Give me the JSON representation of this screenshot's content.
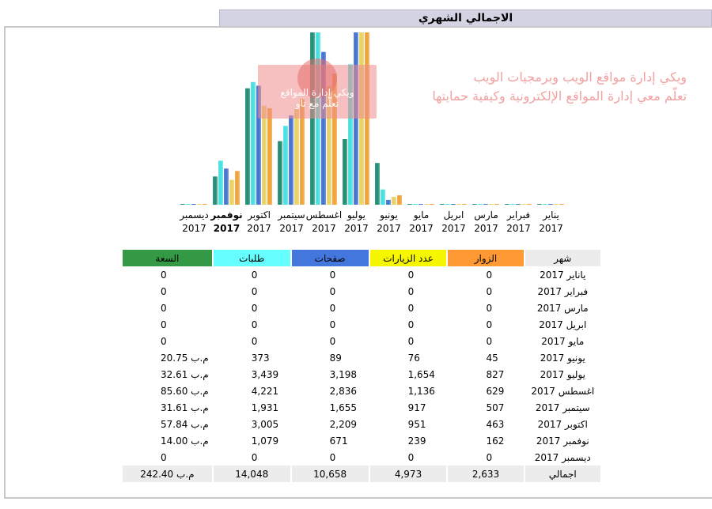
{
  "title": "الاجمالي الشهري",
  "watermark": {
    "line1": "ويكي إدارة مواقع الويب وبرمجيات الويب",
    "line2": "تعلّم معي إدارة المواقع الإلكترونية وكيفية حمايتها",
    "logo_line1": "ويكي إدارة المواقع",
    "logo_line2": "تعلّم مع تاو"
  },
  "colors": {
    "visitors": "#f0a030",
    "visits": "#e8d060",
    "pages": "#3f6fd0",
    "hits": "#40e0e0",
    "bandwidth": "#1a8a70",
    "header_visitors": "#ff9933",
    "header_visits": "#f6f600",
    "header_pages": "#4477dd",
    "header_hits": "#66ffff",
    "header_bandwidth": "#339944"
  },
  "chart_data": {
    "type": "bar",
    "categories": [
      "يناير 2017",
      "فبراير 2017",
      "مارس 2017",
      "ابريل 2017",
      "مايو 2017",
      "يونيو 2017",
      "يوليو 2017",
      "اغسطس 2017",
      "سيتمبر 2017",
      "اكتوبر 2017",
      "نوفمبر 2017",
      "ديسمبر 2017"
    ],
    "category_month": [
      "يناير",
      "فبراير",
      "مارس",
      "ابريل",
      "مايو",
      "يونيو",
      "يوليو",
      "اغسطس",
      "سيتمبر",
      "اكتوبر",
      "نوفمبر",
      "ديسمبر"
    ],
    "category_year": [
      "2017",
      "2017",
      "2017",
      "2017",
      "2017",
      "2017",
      "2017",
      "2017",
      "2017",
      "2017",
      "2017",
      "2017"
    ],
    "current_month_index": 10,
    "series": [
      {
        "key": "bandwidth",
        "values": [
          0,
          0,
          0,
          0,
          0,
          20.75,
          32.61,
          85.6,
          31.61,
          57.84,
          14.0,
          0
        ]
      },
      {
        "key": "hits",
        "values": [
          0,
          0,
          0,
          0,
          0,
          373,
          3439,
          4221,
          1931,
          3005,
          1079,
          0
        ]
      },
      {
        "key": "pages",
        "values": [
          0,
          0,
          0,
          0,
          0,
          89,
          3198,
          2836,
          1655,
          2209,
          671,
          0
        ]
      },
      {
        "key": "visits",
        "values": [
          0,
          0,
          0,
          0,
          0,
          76,
          1654,
          1136,
          917,
          951,
          239,
          0
        ]
      },
      {
        "key": "visitors",
        "values": [
          0,
          0,
          0,
          0,
          0,
          45,
          827,
          629,
          507,
          463,
          162,
          0
        ]
      }
    ]
  },
  "table": {
    "headers": {
      "month": "شهر",
      "visitors": "الزوار",
      "visits": "عدد الزيارات",
      "pages": "صفحات",
      "hits": "طلبات",
      "bandwidth": "السعة"
    },
    "rows": [
      {
        "month": "يانایر 2017",
        "visitors": "0",
        "visits": "0",
        "pages": "0",
        "hits": "0",
        "bandwidth": "0"
      },
      {
        "month": "فبراير 2017",
        "visitors": "0",
        "visits": "0",
        "pages": "0",
        "hits": "0",
        "bandwidth": "0"
      },
      {
        "month": "مارس 2017",
        "visitors": "0",
        "visits": "0",
        "pages": "0",
        "hits": "0",
        "bandwidth": "0"
      },
      {
        "month": "ابريل 2017",
        "visitors": "0",
        "visits": "0",
        "pages": "0",
        "hits": "0",
        "bandwidth": "0"
      },
      {
        "month": "مايو 2017",
        "visitors": "0",
        "visits": "0",
        "pages": "0",
        "hits": "0",
        "bandwidth": "0"
      },
      {
        "month": "يونيو 2017",
        "visitors": "45",
        "visits": "76",
        "pages": "89",
        "hits": "373",
        "bandwidth": "20.75 م.ب"
      },
      {
        "month": "يوليو 2017",
        "visitors": "827",
        "visits": "1,654",
        "pages": "3,198",
        "hits": "3,439",
        "bandwidth": "32.61 م.ب"
      },
      {
        "month": "اغسطس 2017",
        "visitors": "629",
        "visits": "1,136",
        "pages": "2,836",
        "hits": "4,221",
        "bandwidth": "85.60 م.ب"
      },
      {
        "month": "سيتمبر 2017",
        "visitors": "507",
        "visits": "917",
        "pages": "1,655",
        "hits": "1,931",
        "bandwidth": "31.61 م.ب"
      },
      {
        "month": "اكتوبر 2017",
        "visitors": "463",
        "visits": "951",
        "pages": "2,209",
        "hits": "3,005",
        "bandwidth": "57.84 م.ب"
      },
      {
        "month": "نوفمبر 2017",
        "visitors": "162",
        "visits": "239",
        "pages": "671",
        "hits": "1,079",
        "bandwidth": "14.00 م.ب",
        "current": true
      },
      {
        "month": "ديسمبر 2017",
        "visitors": "0",
        "visits": "0",
        "pages": "0",
        "hits": "0",
        "bandwidth": "0"
      }
    ],
    "total": {
      "month": "اجمالي",
      "visitors": "2,633",
      "visits": "4,973",
      "pages": "10,658",
      "hits": "14,048",
      "bandwidth": "242.40 م.ب"
    }
  }
}
